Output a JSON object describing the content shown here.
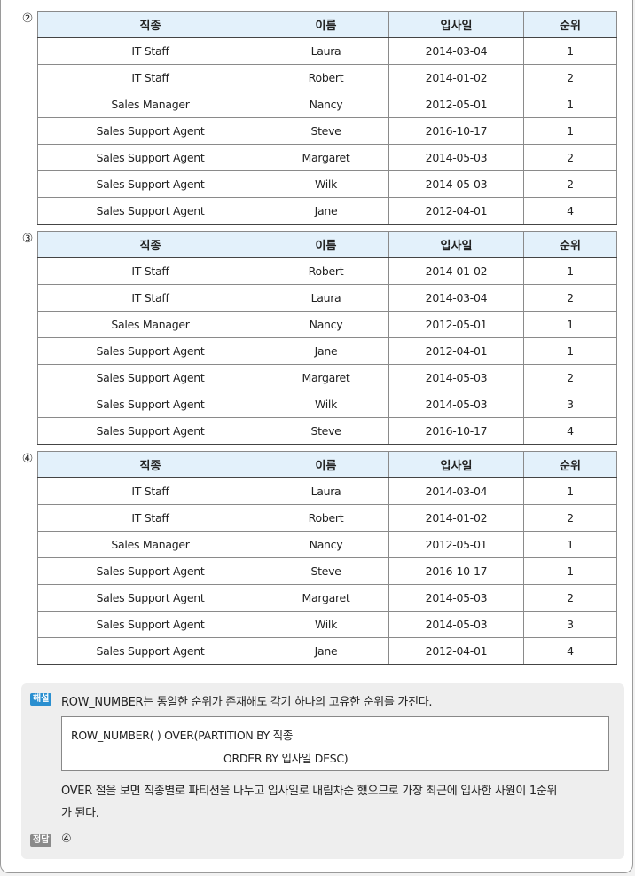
{
  "columns": [
    "직종",
    "이름",
    "입사일",
    "순위"
  ],
  "tables": [
    {
      "option": "②",
      "rows": [
        [
          "IT Staff",
          "Laura",
          "2014-03-04",
          "1"
        ],
        [
          "IT Staff",
          "Robert",
          "2014-01-02",
          "2"
        ],
        [
          "Sales Manager",
          "Nancy",
          "2012-05-01",
          "1"
        ],
        [
          "Sales Support Agent",
          "Steve",
          "2016-10-17",
          "1"
        ],
        [
          "Sales Support Agent",
          "Margaret",
          "2014-05-03",
          "2"
        ],
        [
          "Sales Support Agent",
          "Wilk",
          "2014-05-03",
          "2"
        ],
        [
          "Sales Support Agent",
          "Jane",
          "2012-04-01",
          "4"
        ]
      ]
    },
    {
      "option": "③",
      "rows": [
        [
          "IT Staff",
          "Robert",
          "2014-01-02",
          "1"
        ],
        [
          "IT Staff",
          "Laura",
          "2014-03-04",
          "2"
        ],
        [
          "Sales Manager",
          "Nancy",
          "2012-05-01",
          "1"
        ],
        [
          "Sales Support Agent",
          "Jane",
          "2012-04-01",
          "1"
        ],
        [
          "Sales Support Agent",
          "Margaret",
          "2014-05-03",
          "2"
        ],
        [
          "Sales Support Agent",
          "Wilk",
          "2014-05-03",
          "3"
        ],
        [
          "Sales Support Agent",
          "Steve",
          "2016-10-17",
          "4"
        ]
      ]
    },
    {
      "option": "④",
      "rows": [
        [
          "IT Staff",
          "Laura",
          "2014-03-04",
          "1"
        ],
        [
          "IT Staff",
          "Robert",
          "2014-01-02",
          "2"
        ],
        [
          "Sales Manager",
          "Nancy",
          "2012-05-01",
          "1"
        ],
        [
          "Sales Support Agent",
          "Steve",
          "2016-10-17",
          "1"
        ],
        [
          "Sales Support Agent",
          "Margaret",
          "2014-05-03",
          "2"
        ],
        [
          "Sales Support Agent",
          "Wilk",
          "2014-05-03",
          "3"
        ],
        [
          "Sales Support Agent",
          "Jane",
          "2012-04-01",
          "4"
        ]
      ]
    }
  ],
  "explanation": {
    "badge": "해설",
    "intro": "ROW_NUMBER는 동일한 순위가 존재해도 각기 하나의 고유한 순위를 가진다.",
    "code_line1": "ROW_NUMBER(  ) OVER(PARTITION BY 직종",
    "code_line2": "ORDER BY 입사일 DESC)",
    "body_line1": "OVER 절을 보면 직종별로 파티션을 나누고 입사일로 내림차순 했으므로 가장 최근에 입사한 사원이 1순위",
    "body_line2": "가 된다.",
    "answer_badge": "정답",
    "answer": "④"
  },
  "colors": {
    "header_bg": "#e3f1fb",
    "badge_blue": "#2a8fd0",
    "badge_gray": "#8a8a8a",
    "panel_bg": "#eeeeee"
  }
}
